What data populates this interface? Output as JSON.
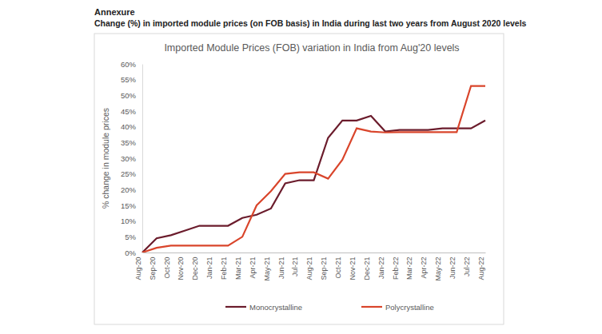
{
  "header": {
    "label": "Annexure",
    "caption": "Change (%) in imported module prices (on FOB basis) in India during last two years from August 2020 levels"
  },
  "chart_data": {
    "type": "line",
    "title": "Imported Module Prices (FOB) variation in India from Aug'20 levels",
    "y_label": "% change in module prices",
    "categories": [
      "Aug-20",
      "Sep-20",
      "Oct-20",
      "Nov-20",
      "Dec-20",
      "Jan-21",
      "Feb-21",
      "Mar-21",
      "Apr-21",
      "May-21",
      "Jun-21",
      "Jul-21",
      "Aug-21",
      "Sep-21",
      "Oct-21",
      "Nov-21",
      "Dec-21",
      "Jan-22",
      "Feb-22",
      "Mar-22",
      "Apr-22",
      "May-22",
      "Jun-22",
      "Jul-22",
      "Aug-22"
    ],
    "series": [
      {
        "name": "Monocrystalline",
        "color": "#6b1c2c",
        "values": [
          0,
          4.5,
          5.5,
          7,
          8.5,
          8.5,
          8.5,
          11,
          12,
          14,
          22,
          23,
          23,
          36.5,
          42,
          42,
          43.5,
          38.5,
          39,
          39,
          39,
          39.5,
          39.5,
          39.5,
          42
        ]
      },
      {
        "name": "Polycrystalline",
        "color": "#d9452b",
        "values": [
          0,
          1.5,
          2.2,
          2.2,
          2.2,
          2.2,
          2.2,
          5,
          15,
          19.5,
          25,
          25.5,
          25.5,
          23.5,
          29.5,
          39.5,
          38.5,
          38.2,
          38.3,
          38.3,
          38.3,
          38.3,
          38.3,
          53,
          53
        ]
      }
    ],
    "ylim": [
      0,
      60
    ],
    "yticks": [
      {
        "value": 0,
        "label": "0%"
      },
      {
        "value": 5,
        "label": "5%"
      },
      {
        "value": 10,
        "label": "10%"
      },
      {
        "value": 15,
        "label": "15%"
      },
      {
        "value": 20,
        "label": "20%"
      },
      {
        "value": 25,
        "label": "25%"
      },
      {
        "value": 30,
        "label": "30%"
      },
      {
        "value": 35,
        "label": "35%"
      },
      {
        "value": 40,
        "label": "40%"
      },
      {
        "value": 45,
        "label": "45%"
      },
      {
        "value": 50,
        "label": "50%"
      },
      {
        "value": 55,
        "label": "55%"
      },
      {
        "value": 60,
        "label": "60%"
      }
    ],
    "grid": false,
    "legend": "bottom"
  }
}
